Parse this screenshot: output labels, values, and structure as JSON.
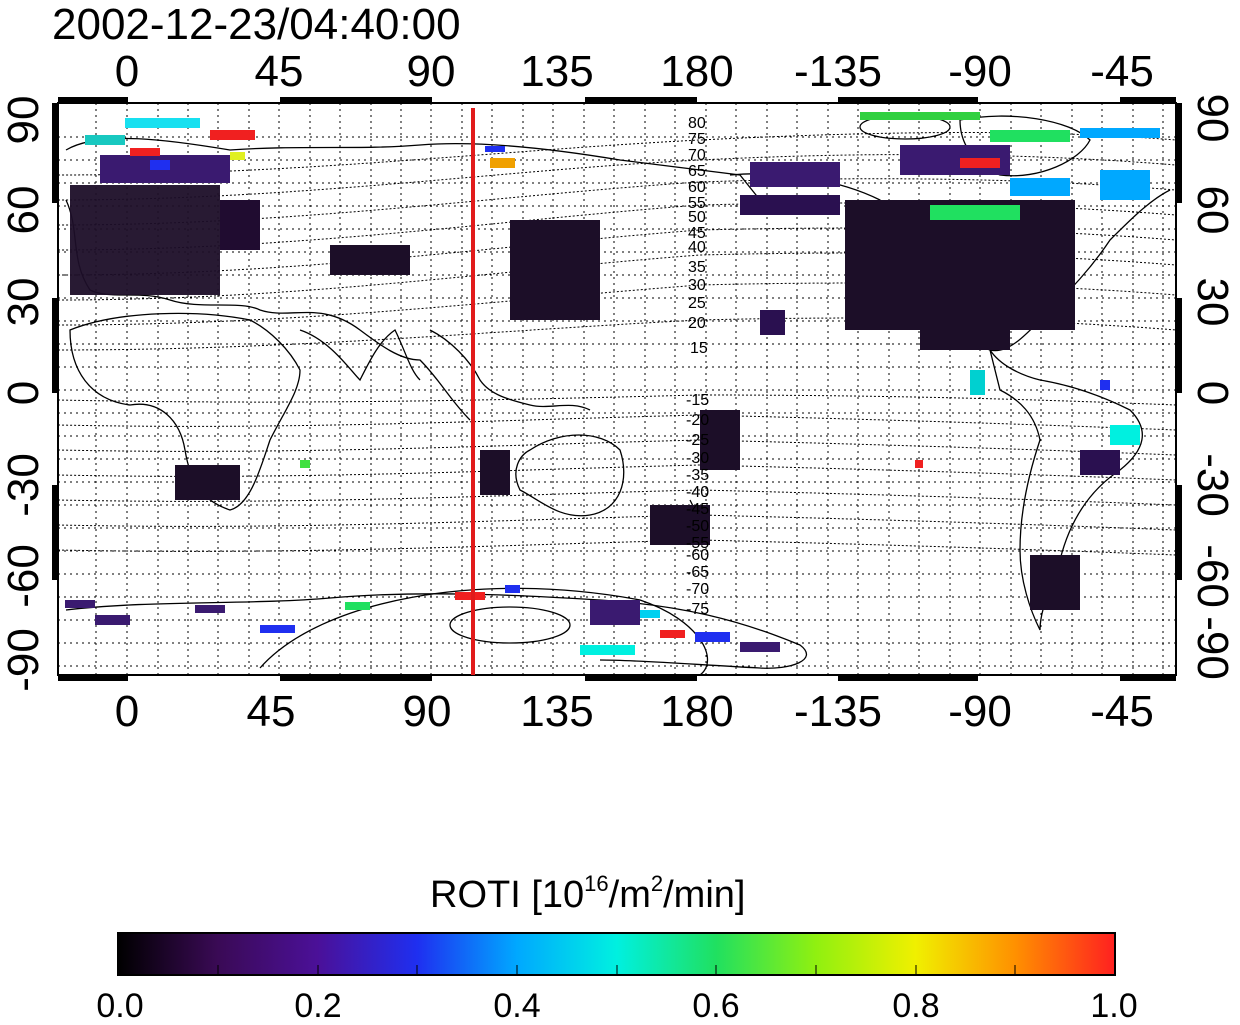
{
  "title": "2002-12-23/04:40:00",
  "x_axis": {
    "tick_labels": [
      "0",
      "45",
      "90",
      "135",
      "180",
      "-135",
      "-90",
      "-45"
    ]
  },
  "y_axis": {
    "tick_labels": [
      "90",
      "60",
      "30",
      "0",
      "-30",
      "-60",
      "-90"
    ]
  },
  "magnetic_latitude_labels": [
    "80",
    "75",
    "70",
    "65",
    "60",
    "55",
    "50",
    "45",
    "40",
    "35",
    "30",
    "25",
    "20",
    "15",
    "-15",
    "-20",
    "-25",
    "-30",
    "-35",
    "-40",
    "-45",
    "-50",
    "-55",
    "-60",
    "-65",
    "-70",
    "-75"
  ],
  "meridian_marker_lon": 113,
  "meridian_color": "#e11b1b",
  "colorbar": {
    "label": "ROTI  [10",
    "label_sup1": "16",
    "label_mid": "/m",
    "label_sup2": "2",
    "label_end": "/min]",
    "min": 0.0,
    "max": 1.0,
    "tick_labels": [
      "0.0",
      "0.2",
      "0.4",
      "0.6",
      "0.8",
      "1.0"
    ],
    "stops": [
      "#000000",
      "#3a0a55",
      "#4b1098",
      "#1f2ff0",
      "#00a8ff",
      "#00f0e0",
      "#20e060",
      "#90f010",
      "#f0f000",
      "#ff9000",
      "#ff2020"
    ]
  }
}
